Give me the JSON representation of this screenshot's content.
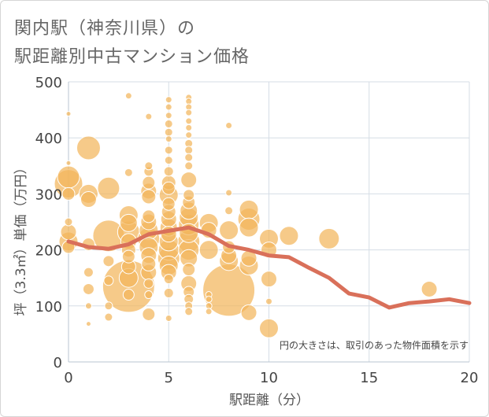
{
  "title_line1": "関内駅（神奈川県）の",
  "title_line2": "駅距離別中古マンション価格",
  "chart_data": {
    "type": "scatter",
    "title": "関内駅（神奈川県）の駅距離別中古マンション価格",
    "xlabel": "駅距離（分）",
    "ylabel": "坪（3.3㎡）単価（万円）",
    "xlim": [
      0,
      20
    ],
    "ylim": [
      0,
      500
    ],
    "xticks": [
      "0",
      "5",
      "10",
      "15",
      "20"
    ],
    "yticks": [
      "0",
      "100",
      "200",
      "300",
      "400",
      "500"
    ],
    "note": "円の大きさは、取引のあった物件面積を示す",
    "colors": {
      "bubble": "#f2b65b",
      "line": "#d9705a",
      "grid": "#d5dde6"
    },
    "bubbles": [
      {
        "x": 0,
        "y": 443,
        "s": 3
      },
      {
        "x": 0,
        "y": 355,
        "s": 3
      },
      {
        "x": 0,
        "y": 330,
        "s": 14
      },
      {
        "x": 0,
        "y": 318,
        "s": 18
      },
      {
        "x": 0,
        "y": 300,
        "s": 8
      },
      {
        "x": 0,
        "y": 250,
        "s": 5
      },
      {
        "x": 0,
        "y": 232,
        "s": 10
      },
      {
        "x": 0,
        "y": 215,
        "s": 12
      },
      {
        "x": 0,
        "y": 205,
        "s": 8
      },
      {
        "x": 1,
        "y": 382,
        "s": 15
      },
      {
        "x": 1,
        "y": 300,
        "s": 12
      },
      {
        "x": 1,
        "y": 290,
        "s": 10
      },
      {
        "x": 1,
        "y": 210,
        "s": 8
      },
      {
        "x": 1,
        "y": 160,
        "s": 6
      },
      {
        "x": 1,
        "y": 130,
        "s": 7
      },
      {
        "x": 1,
        "y": 100,
        "s": 4
      },
      {
        "x": 1,
        "y": 68,
        "s": 3
      },
      {
        "x": 2,
        "y": 310,
        "s": 14
      },
      {
        "x": 2,
        "y": 225,
        "s": 20
      },
      {
        "x": 2,
        "y": 180,
        "s": 7
      },
      {
        "x": 2,
        "y": 145,
        "s": 6
      },
      {
        "x": 2,
        "y": 100,
        "s": 5
      },
      {
        "x": 2,
        "y": 80,
        "s": 5
      },
      {
        "x": 3,
        "y": 475,
        "s": 4
      },
      {
        "x": 3,
        "y": 338,
        "s": 5
      },
      {
        "x": 3,
        "y": 262,
        "s": 12
      },
      {
        "x": 3,
        "y": 248,
        "s": 11
      },
      {
        "x": 3,
        "y": 232,
        "s": 14
      },
      {
        "x": 3,
        "y": 215,
        "s": 10
      },
      {
        "x": 3,
        "y": 200,
        "s": 9
      },
      {
        "x": 3,
        "y": 188,
        "s": 8
      },
      {
        "x": 3,
        "y": 170,
        "s": 9
      },
      {
        "x": 3,
        "y": 150,
        "s": 12
      },
      {
        "x": 3,
        "y": 135,
        "s": 33
      },
      {
        "x": 3,
        "y": 120,
        "s": 7
      },
      {
        "x": 4,
        "y": 438,
        "s": 4
      },
      {
        "x": 4,
        "y": 350,
        "s": 5
      },
      {
        "x": 4,
        "y": 340,
        "s": 6
      },
      {
        "x": 4,
        "y": 320,
        "s": 8
      },
      {
        "x": 4,
        "y": 305,
        "s": 10
      },
      {
        "x": 4,
        "y": 295,
        "s": 9
      },
      {
        "x": 4,
        "y": 260,
        "s": 8
      },
      {
        "x": 4,
        "y": 250,
        "s": 10
      },
      {
        "x": 4,
        "y": 235,
        "s": 12
      },
      {
        "x": 4,
        "y": 220,
        "s": 14
      },
      {
        "x": 4,
        "y": 205,
        "s": 12
      },
      {
        "x": 4,
        "y": 190,
        "s": 10
      },
      {
        "x": 4,
        "y": 175,
        "s": 9
      },
      {
        "x": 4,
        "y": 160,
        "s": 10
      },
      {
        "x": 4,
        "y": 140,
        "s": 6
      },
      {
        "x": 4,
        "y": 120,
        "s": 5
      },
      {
        "x": 4,
        "y": 85,
        "s": 8
      },
      {
        "x": 5,
        "y": 468,
        "s": 4
      },
      {
        "x": 5,
        "y": 455,
        "s": 4
      },
      {
        "x": 5,
        "y": 440,
        "s": 4
      },
      {
        "x": 5,
        "y": 425,
        "s": 5
      },
      {
        "x": 5,
        "y": 410,
        "s": 5
      },
      {
        "x": 5,
        "y": 398,
        "s": 4
      },
      {
        "x": 5,
        "y": 378,
        "s": 5
      },
      {
        "x": 5,
        "y": 360,
        "s": 5
      },
      {
        "x": 5,
        "y": 340,
        "s": 6
      },
      {
        "x": 5,
        "y": 320,
        "s": 9
      },
      {
        "x": 5,
        "y": 310,
        "s": 8
      },
      {
        "x": 5,
        "y": 298,
        "s": 12
      },
      {
        "x": 5,
        "y": 282,
        "s": 8
      },
      {
        "x": 5,
        "y": 268,
        "s": 9
      },
      {
        "x": 5,
        "y": 255,
        "s": 10
      },
      {
        "x": 5,
        "y": 240,
        "s": 11
      },
      {
        "x": 5,
        "y": 228,
        "s": 10
      },
      {
        "x": 5,
        "y": 215,
        "s": 12
      },
      {
        "x": 5,
        "y": 200,
        "s": 13
      },
      {
        "x": 5,
        "y": 185,
        "s": 14
      },
      {
        "x": 5,
        "y": 172,
        "s": 12
      },
      {
        "x": 5,
        "y": 160,
        "s": 10
      },
      {
        "x": 5,
        "y": 148,
        "s": 6
      },
      {
        "x": 5,
        "y": 123,
        "s": 6
      },
      {
        "x": 5,
        "y": 78,
        "s": 4
      },
      {
        "x": 6,
        "y": 472,
        "s": 4
      },
      {
        "x": 6,
        "y": 465,
        "s": 4
      },
      {
        "x": 6,
        "y": 455,
        "s": 4
      },
      {
        "x": 6,
        "y": 445,
        "s": 4
      },
      {
        "x": 6,
        "y": 430,
        "s": 4
      },
      {
        "x": 6,
        "y": 418,
        "s": 4
      },
      {
        "x": 6,
        "y": 405,
        "s": 4
      },
      {
        "x": 6,
        "y": 390,
        "s": 5
      },
      {
        "x": 6,
        "y": 378,
        "s": 5
      },
      {
        "x": 6,
        "y": 365,
        "s": 5
      },
      {
        "x": 6,
        "y": 350,
        "s": 5
      },
      {
        "x": 6,
        "y": 325,
        "s": 10
      },
      {
        "x": 6,
        "y": 298,
        "s": 7
      },
      {
        "x": 6,
        "y": 285,
        "s": 8
      },
      {
        "x": 6,
        "y": 270,
        "s": 11
      },
      {
        "x": 6,
        "y": 258,
        "s": 12
      },
      {
        "x": 6,
        "y": 245,
        "s": 13
      },
      {
        "x": 6,
        "y": 230,
        "s": 12
      },
      {
        "x": 6,
        "y": 215,
        "s": 14
      },
      {
        "x": 6,
        "y": 200,
        "s": 13
      },
      {
        "x": 6,
        "y": 185,
        "s": 11
      },
      {
        "x": 6,
        "y": 165,
        "s": 8
      },
      {
        "x": 6,
        "y": 140,
        "s": 10
      },
      {
        "x": 6,
        "y": 125,
        "s": 7
      },
      {
        "x": 6,
        "y": 112,
        "s": 6
      },
      {
        "x": 6,
        "y": 100,
        "s": 5
      },
      {
        "x": 6,
        "y": 90,
        "s": 5
      },
      {
        "x": 7,
        "y": 248,
        "s": 12
      },
      {
        "x": 7,
        "y": 235,
        "s": 10
      },
      {
        "x": 7,
        "y": 200,
        "s": 12
      },
      {
        "x": 7,
        "y": 120,
        "s": 4
      },
      {
        "x": 7,
        "y": 112,
        "s": 4
      },
      {
        "x": 7,
        "y": 100,
        "s": 4
      },
      {
        "x": 7,
        "y": 90,
        "s": 4
      },
      {
        "x": 8,
        "y": 422,
        "s": 4
      },
      {
        "x": 8,
        "y": 302,
        "s": 4
      },
      {
        "x": 8,
        "y": 270,
        "s": 5
      },
      {
        "x": 8,
        "y": 235,
        "s": 12
      },
      {
        "x": 8,
        "y": 205,
        "s": 8
      },
      {
        "x": 8,
        "y": 190,
        "s": 10
      },
      {
        "x": 8,
        "y": 180,
        "s": 12
      },
      {
        "x": 8,
        "y": 128,
        "s": 33
      },
      {
        "x": 9,
        "y": 272,
        "s": 12
      },
      {
        "x": 9,
        "y": 255,
        "s": 14
      },
      {
        "x": 9,
        "y": 240,
        "s": 12
      },
      {
        "x": 9,
        "y": 185,
        "s": 10
      },
      {
        "x": 9,
        "y": 172,
        "s": 12
      },
      {
        "x": 9,
        "y": 88,
        "s": 10
      },
      {
        "x": 10,
        "y": 220,
        "s": 12
      },
      {
        "x": 10,
        "y": 200,
        "s": 10
      },
      {
        "x": 10,
        "y": 148,
        "s": 10
      },
      {
        "x": 10,
        "y": 108,
        "s": 4
      },
      {
        "x": 10,
        "y": 60,
        "s": 12
      },
      {
        "x": 11,
        "y": 225,
        "s": 12
      },
      {
        "x": 13,
        "y": 220,
        "s": 13
      },
      {
        "x": 18,
        "y": 130,
        "s": 10
      }
    ],
    "trend": [
      {
        "x": 0,
        "y": 215
      },
      {
        "x": 1,
        "y": 205
      },
      {
        "x": 2,
        "y": 202
      },
      {
        "x": 3,
        "y": 210
      },
      {
        "x": 4,
        "y": 228
      },
      {
        "x": 5,
        "y": 234
      },
      {
        "x": 6,
        "y": 240
      },
      {
        "x": 7,
        "y": 228
      },
      {
        "x": 8,
        "y": 207
      },
      {
        "x": 9,
        "y": 200
      },
      {
        "x": 10,
        "y": 190
      },
      {
        "x": 11,
        "y": 187
      },
      {
        "x": 12,
        "y": 168
      },
      {
        "x": 13,
        "y": 150
      },
      {
        "x": 14,
        "y": 122
      },
      {
        "x": 15,
        "y": 115
      },
      {
        "x": 16,
        "y": 97
      },
      {
        "x": 17,
        "y": 105
      },
      {
        "x": 18,
        "y": 108
      },
      {
        "x": 19,
        "y": 112
      },
      {
        "x": 20,
        "y": 105
      }
    ]
  }
}
